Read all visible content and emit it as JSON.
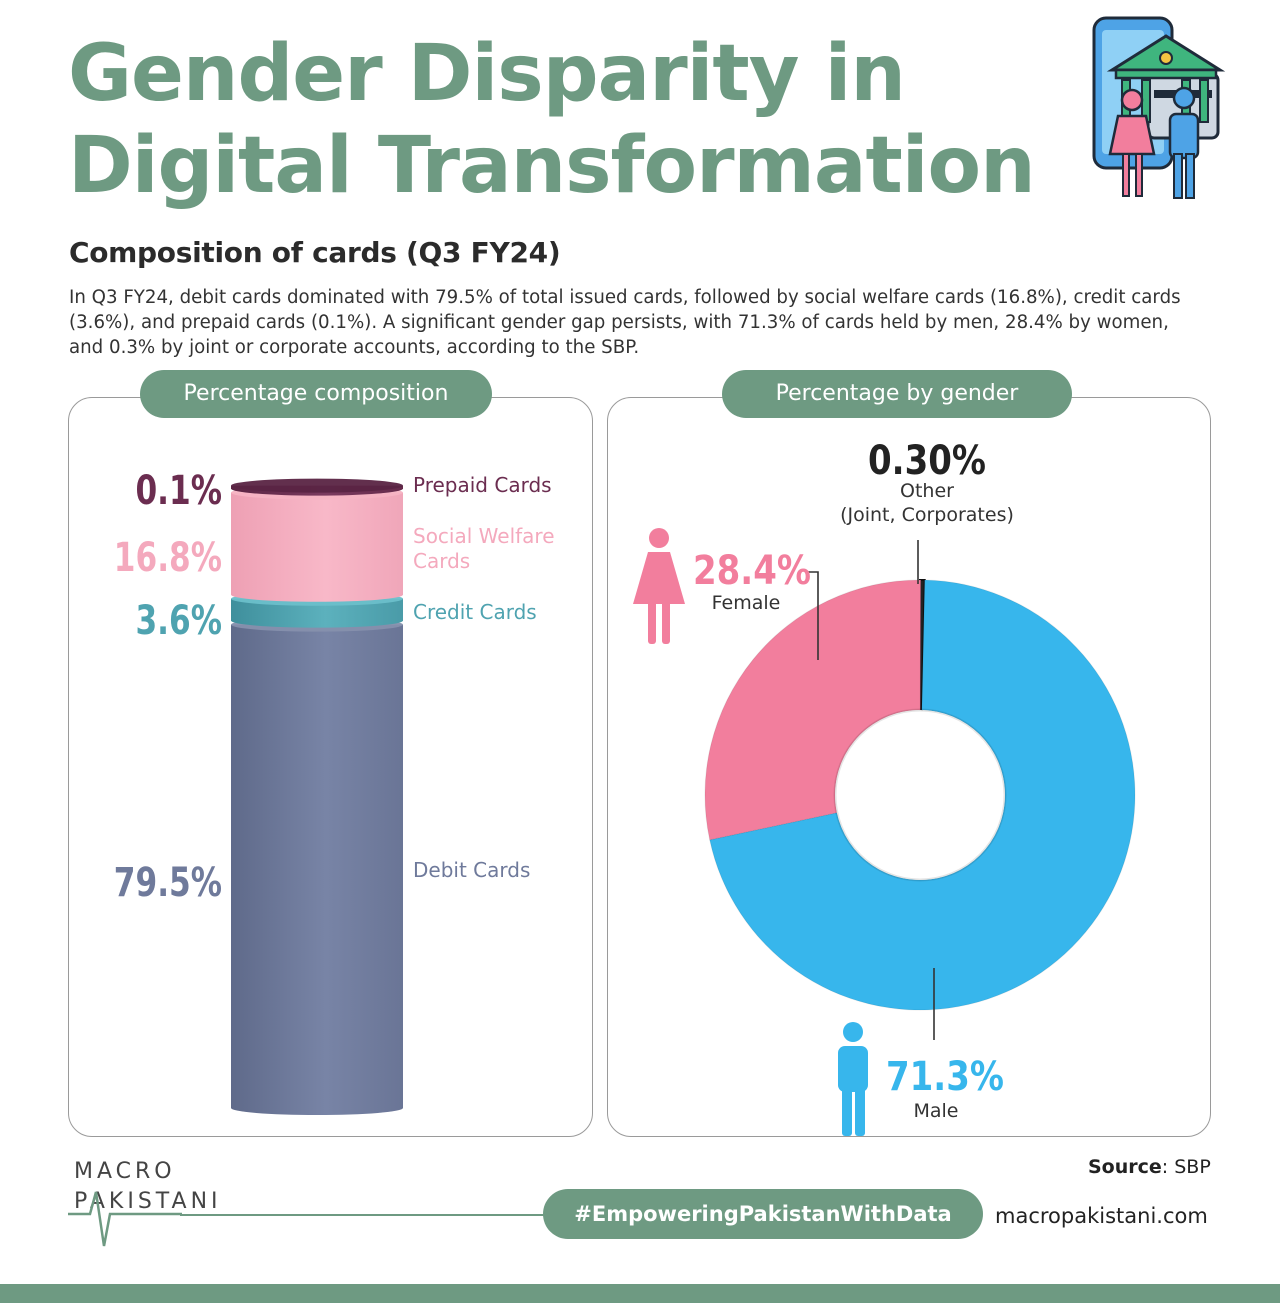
{
  "title_lines": [
    "Gender Disparity in",
    "Digital Transformation"
  ],
  "subtitle": "Composition of cards (Q3 FY24)",
  "description": "In Q3 FY24, debit cards dominated with 79.5% of total issued cards, followed by social welfare cards (16.8%), credit cards (3.6%), and prepaid cards (0.1%). A significant gender gap persists, with 71.3% of cards held by men, 28.4% by women, and 0.3% by joint or corporate accounts, according to the SBP.",
  "colors": {
    "accent": "#6e9a82",
    "prepaid": "#6b2d50",
    "social_welfare": "#f4a9bd",
    "credit": "#4fa3b0",
    "debit": "#6f7a9b",
    "female": "#f27e9d",
    "male": "#37b6ec",
    "other": "#222222"
  },
  "chart_data": [
    {
      "type": "bar",
      "title": "Percentage composition",
      "stacked": true,
      "categories": [
        "Prepaid Cards",
        "Social Welfare Cards",
        "Credit Cards",
        "Debit Cards"
      ],
      "category_lines": [
        [
          "Prepaid Cards"
        ],
        [
          "Social Welfare",
          "Cards"
        ],
        [
          "Credit Cards"
        ],
        [
          "Debit Cards"
        ]
      ],
      "values": [
        0.1,
        16.8,
        3.6,
        79.5
      ],
      "value_labels": [
        "0.1%",
        "16.8%",
        "3.6%",
        "79.5%"
      ],
      "unit": "%"
    },
    {
      "type": "pie",
      "title": "Percentage by gender",
      "donut": true,
      "slices": [
        {
          "label": "Other",
          "sublabel": "(Joint, Corporates)",
          "value": 0.3,
          "value_label": "0.30%",
          "icon": "none"
        },
        {
          "label": "Male",
          "value": 71.3,
          "value_label": "71.3%",
          "icon": "male-figure-icon"
        },
        {
          "label": "Female",
          "value": 28.4,
          "value_label": "28.4%",
          "icon": "female-figure-icon"
        }
      ],
      "unit": "%"
    }
  ],
  "source": {
    "label": "Source",
    "value": ": SBP"
  },
  "hashtag": "#EmpoweringPakistanWithData",
  "website": "macropakistani.com",
  "logo": {
    "line1": "MACRO",
    "line2": "PAKISTANI",
    "icon": "heartbeat-logo-icon"
  }
}
